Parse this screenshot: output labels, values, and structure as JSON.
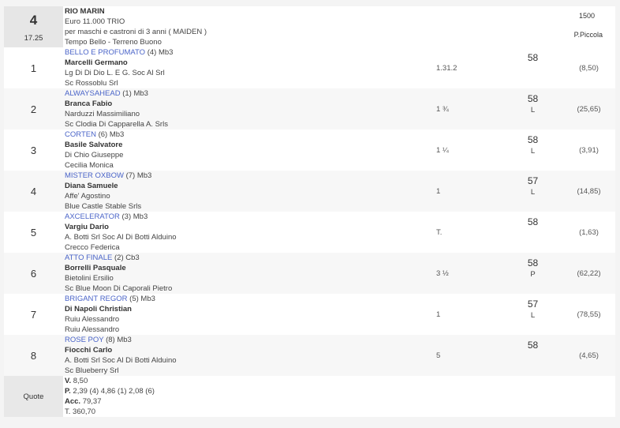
{
  "race": {
    "number": "4",
    "time": "17.25",
    "name": "RIO MARIN",
    "prize": "Euro 11.000 TRIO",
    "conditions": "per maschi e castroni di 3 anni ( MAIDEN )",
    "weather": "Tempo Bello - Terreno Buono",
    "distance": "1500",
    "track": "P.Piccola"
  },
  "runners": [
    {
      "pos": "1",
      "horse": "BELLO E PROFUMATO",
      "extra": " (4) Mb3",
      "jockey": "Marcelli Germano",
      "trainer": "Lg Di Di Dio L. E G. Soc Al Srl",
      "owner": "Sc Rossoblu Srl",
      "margin": "1.31.2",
      "weight": "58",
      "equip": "",
      "odds": "(8,50)"
    },
    {
      "pos": "2",
      "horse": "ALWAYSAHEAD",
      "extra": " (1) Mb3",
      "jockey": "Branca Fabio",
      "trainer": "Narduzzi Massimiliano",
      "owner": "Sc Clodia Di Capparella A. Srls",
      "margin": "1 ¾",
      "weight": "58",
      "equip": "L",
      "odds": "(25,65)"
    },
    {
      "pos": "3",
      "horse": "CORTEN",
      "extra": " (6) Mb3",
      "jockey": "Basile Salvatore",
      "trainer": "Di Chio Giuseppe",
      "owner": "Cecilia Monica",
      "margin": "1 ¼",
      "weight": "58",
      "equip": "L",
      "odds": "(3,91)"
    },
    {
      "pos": "4",
      "horse": "MISTER OXBOW",
      "extra": " (7) Mb3",
      "jockey": "Diana Samuele",
      "trainer": "Affe' Agostino",
      "owner": "Blue Castle Stable Srls",
      "margin": "1",
      "weight": "57",
      "equip": "L",
      "odds": "(14,85)"
    },
    {
      "pos": "5",
      "horse": "AXCELERATOR",
      "extra": " (3) Mb3",
      "jockey": "Vargiu Dario",
      "trainer": "A. Botti Srl Soc Al Di Botti Alduino",
      "owner": "Crecco Federica",
      "margin": "T.",
      "weight": "58",
      "equip": "",
      "odds": "(1,63)"
    },
    {
      "pos": "6",
      "horse": "ATTO FINALE",
      "extra": " (2) Cb3",
      "jockey": "Borrelli Pasquale",
      "trainer": "Bietolini Ersilio",
      "owner": "Sc Blue Moon Di Caporali Pietro",
      "margin": "3 ½",
      "weight": "58",
      "equip": "P",
      "odds": "(62,22)"
    },
    {
      "pos": "7",
      "horse": "BRIGANT REGOR",
      "extra": " (5) Mb3",
      "jockey": "Di Napoli Christian",
      "trainer": "Ruiu Alessandro",
      "owner": "Ruiu Alessandro",
      "margin": "1",
      "weight": "57",
      "equip": "L",
      "odds": "(78,55)"
    },
    {
      "pos": "8",
      "horse": "ROSE POY",
      "extra": " (8) Mb3",
      "jockey": "Fiocchi Carlo",
      "trainer": "A. Botti Srl Soc Al Di Botti Alduino",
      "owner": "Sc Blueberry Srl",
      "margin": "5",
      "weight": "58",
      "equip": "",
      "odds": "(4,65)"
    }
  ],
  "quote": {
    "label": "Quote",
    "v_label": "V.",
    "v": " 8,50",
    "p_label": "P.",
    "p": " 2,39 (4)  4,86 (1)  2,08 (6)",
    "acc_label": "Acc.",
    "acc": " 79,37",
    "t_label": "T.",
    "t": " 360,70"
  }
}
